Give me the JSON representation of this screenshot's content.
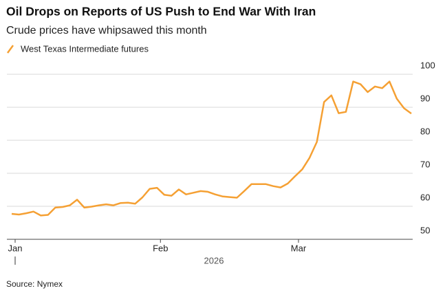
{
  "chart_data": {
    "type": "line",
    "title": "Oil Drops on Reports of US Push to End War With Iran",
    "subtitle": "Crude prices have whipsawed this month",
    "categories": [
      "Jan",
      null,
      null,
      null,
      null,
      null,
      null,
      null,
      null,
      null,
      null,
      null,
      null,
      null,
      null,
      null,
      null,
      null,
      null,
      null,
      "Feb",
      null,
      null,
      null,
      null,
      null,
      null,
      null,
      null,
      null,
      null,
      null,
      null,
      null,
      null,
      null,
      null,
      null,
      null,
      "Mar",
      null,
      null,
      null,
      null,
      null,
      null,
      null,
      null,
      null,
      null,
      null,
      null,
      null,
      null,
      null,
      null
    ],
    "series": [
      {
        "name": "West Texas Intermediate futures",
        "color": "#f5a033",
        "values": [
          57.7,
          57.5,
          57.9,
          58.4,
          57.2,
          57.4,
          59.6,
          59.8,
          60.3,
          62.0,
          59.6,
          59.9,
          60.3,
          60.6,
          60.3,
          61.0,
          61.1,
          60.8,
          62.7,
          65.3,
          65.6,
          63.5,
          63.2,
          65.1,
          63.6,
          64.1,
          64.6,
          64.4,
          63.6,
          63.0,
          62.8,
          62.6,
          64.6,
          66.7,
          66.7,
          66.7,
          66.1,
          65.7,
          66.9,
          69.1,
          71.2,
          74.7,
          79.5,
          91.6,
          93.6,
          88.2,
          88.6,
          97.8,
          97.0,
          94.6,
          96.3,
          95.8,
          97.8,
          92.6,
          89.7,
          88.1
        ]
      }
    ],
    "x_label": "2026",
    "ylim": [
      50,
      102.5
    ],
    "yticks": [
      50,
      60,
      70,
      80,
      90,
      100
    ],
    "grid": true,
    "source": "Source: Nymex"
  }
}
